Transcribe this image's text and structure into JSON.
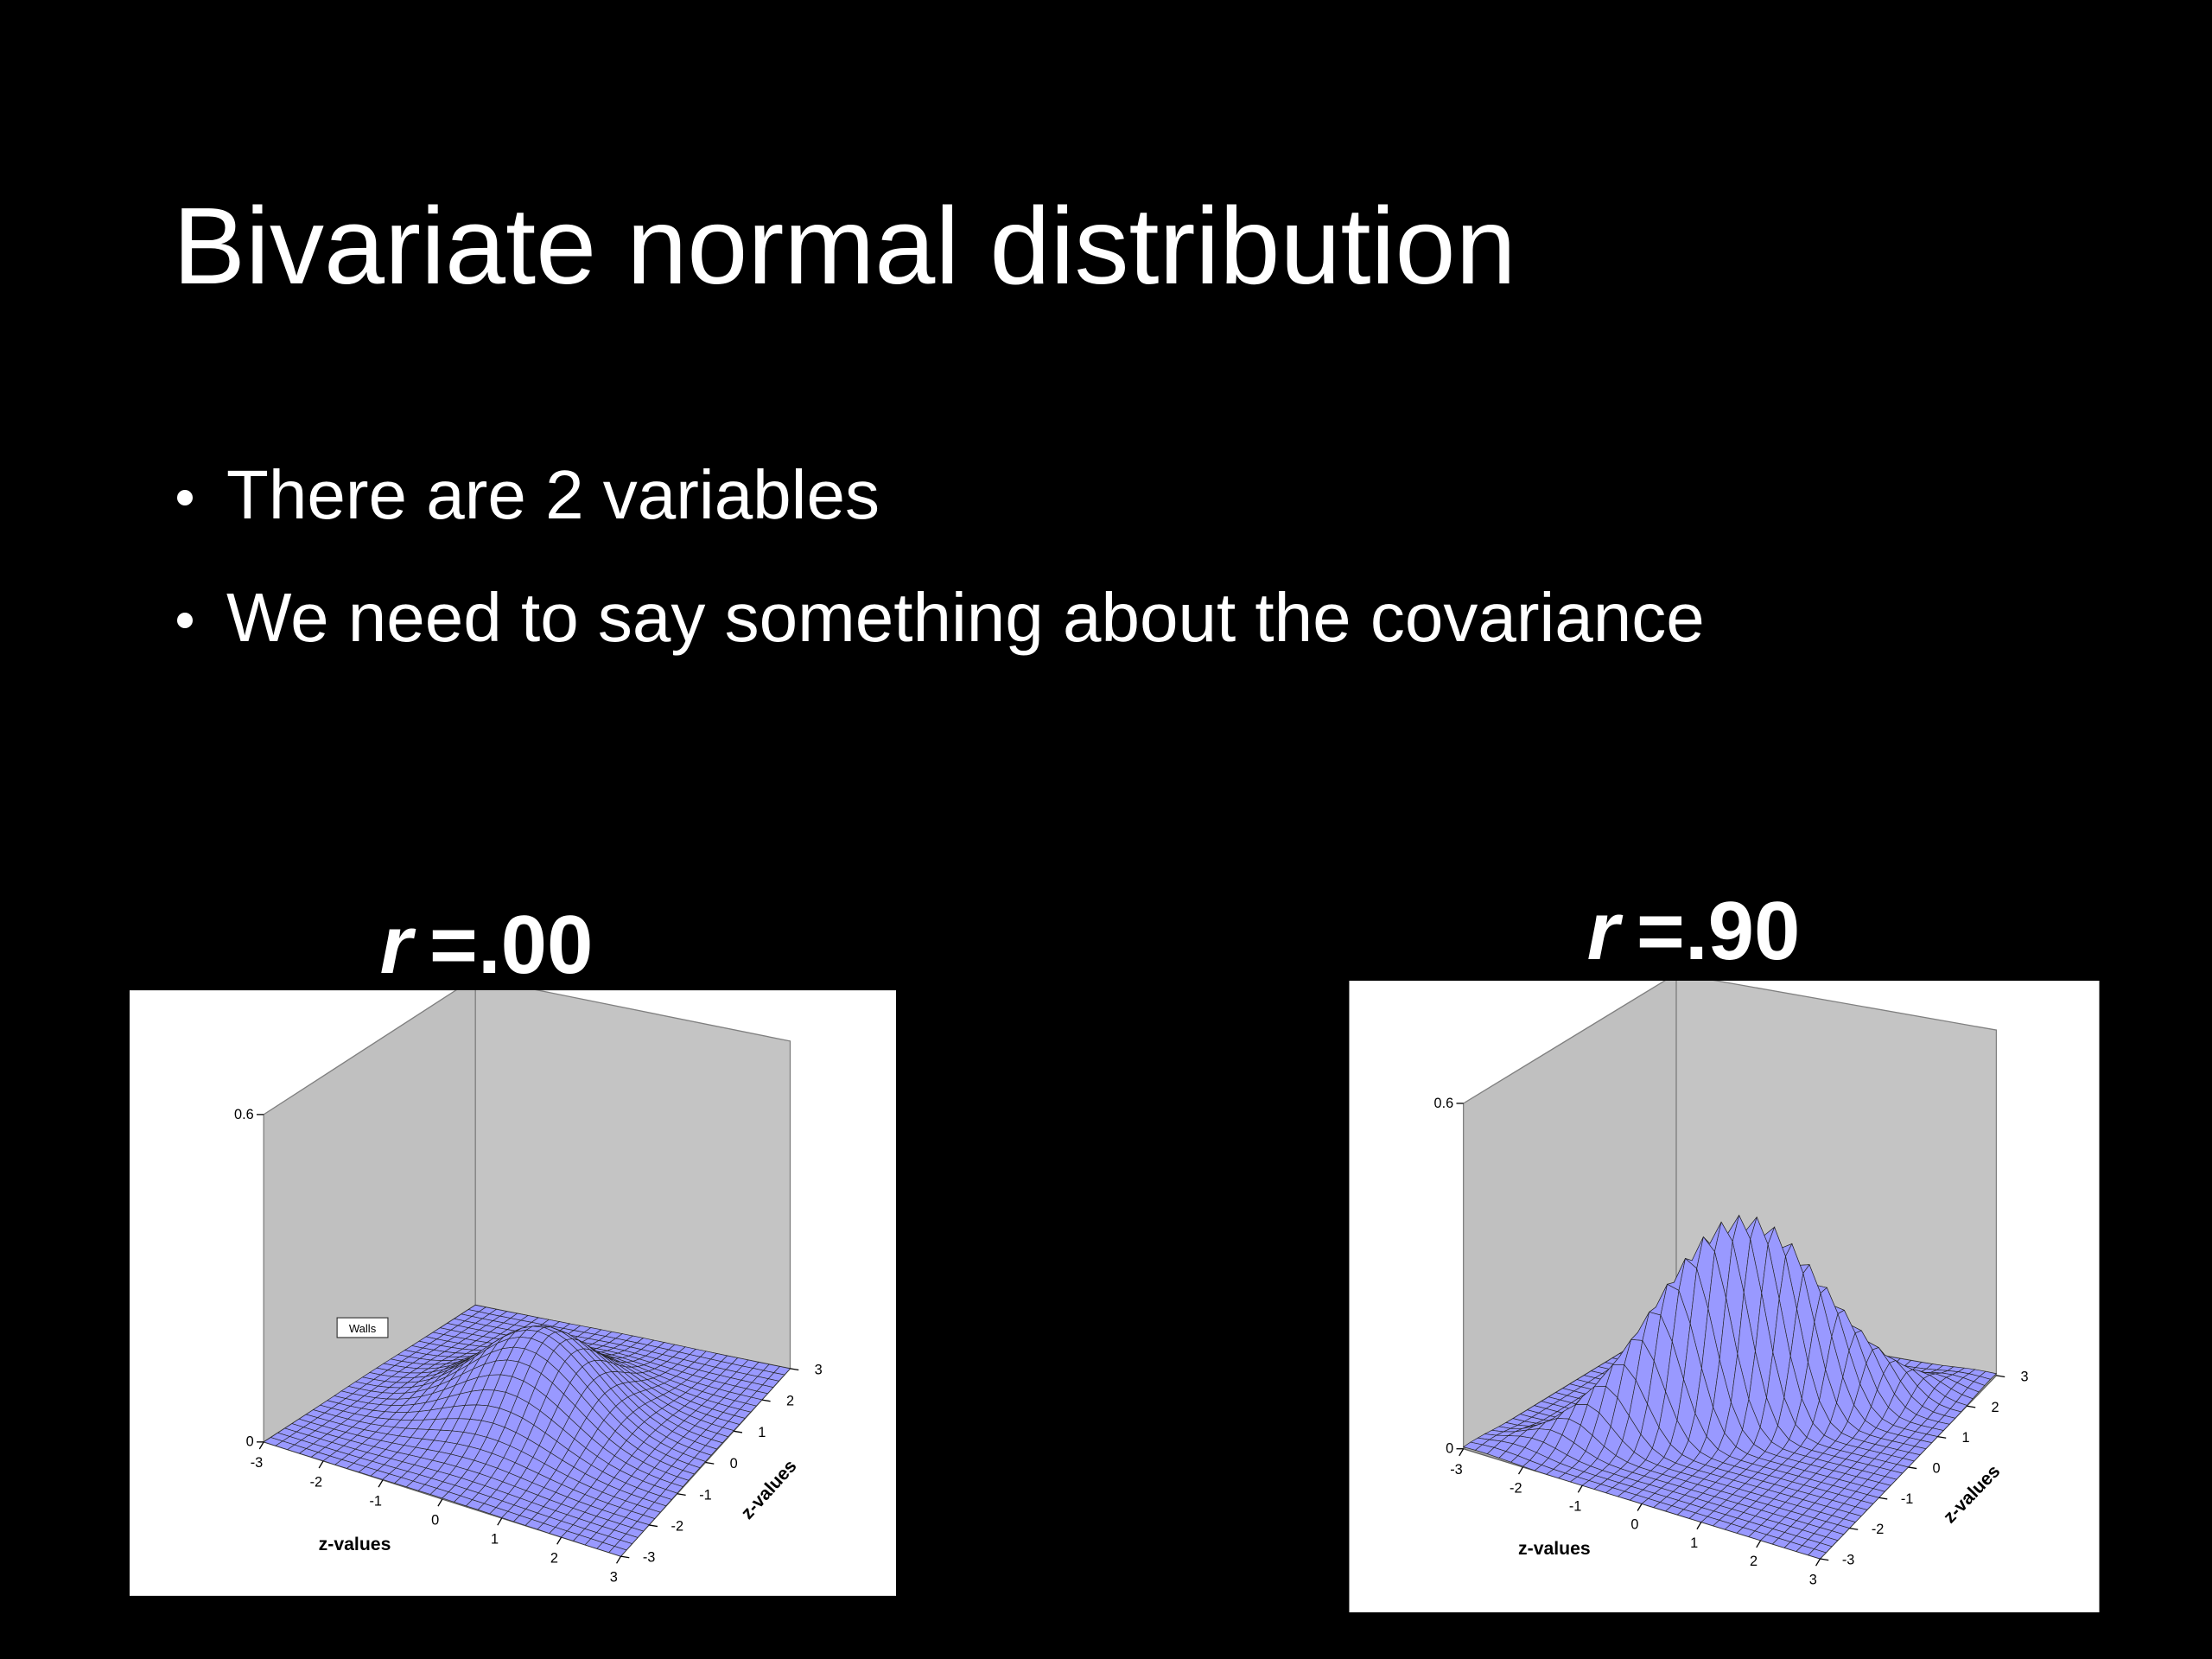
{
  "slide": {
    "title": "Bivariate normal distribution",
    "bullets": [
      "There are 2 variables",
      "We need to say something about the covariance"
    ]
  },
  "chart_data": [
    {
      "type": "surface",
      "symbol": "r",
      "correlation": {
        "value": 0,
        "label": "=.00"
      },
      "xlabel": "z-values",
      "ylabel": "z-values",
      "xlim": [
        -3,
        3
      ],
      "ylim": [
        -3,
        3
      ],
      "zlim": [
        0,
        0.6
      ],
      "xticks": [
        -3,
        -2,
        -1,
        0,
        1,
        2,
        3
      ],
      "yticks": [
        -3,
        -2,
        -1,
        0,
        1,
        2,
        3
      ],
      "zticks": [
        0,
        0.6
      ],
      "tooltip": "Walls"
    },
    {
      "type": "surface",
      "symbol": "r",
      "correlation": {
        "value": 0.9,
        "label": "=.90"
      },
      "xlabel": "z-values",
      "ylabel": "z-values",
      "xlim": [
        -3,
        3
      ],
      "ylim": [
        -3,
        3
      ],
      "zlim": [
        0,
        0.6
      ],
      "xticks": [
        -3,
        -2,
        -1,
        0,
        1,
        2,
        3
      ],
      "yticks": [
        -3,
        -2,
        -1,
        0,
        1,
        2,
        3
      ],
      "zticks": [
        0,
        0.6
      ]
    }
  ]
}
